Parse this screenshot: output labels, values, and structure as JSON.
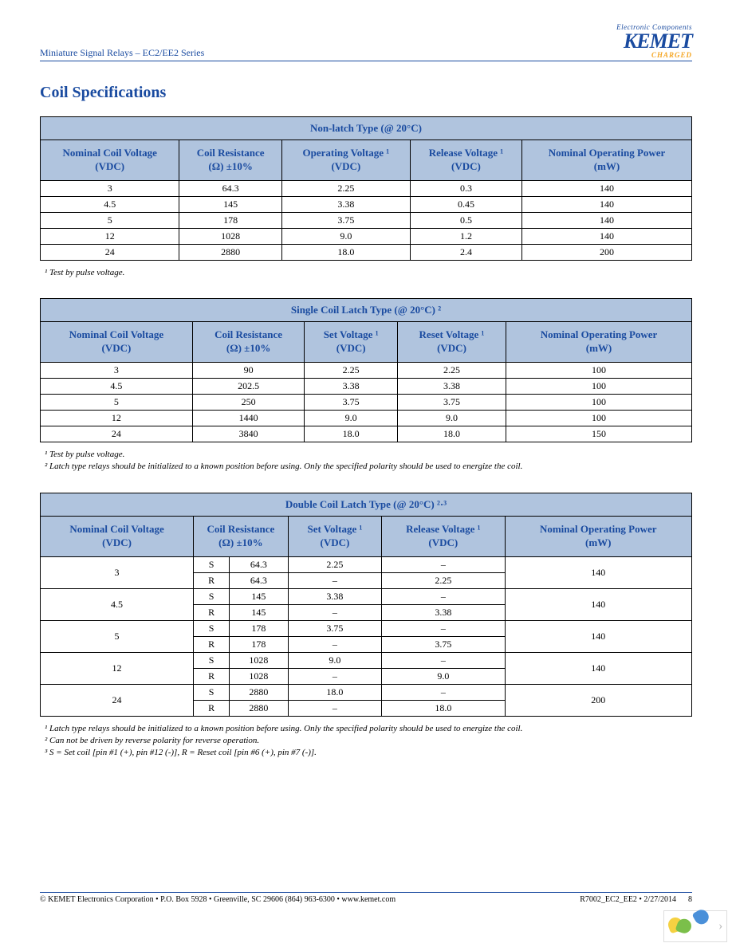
{
  "doc_title": "Miniature Signal Relays – EC2/EE2 Series",
  "brand": {
    "ec": "Electronic Components",
    "name": "KEMET",
    "tag": "CHARGED"
  },
  "section_title": "Coil Specifications",
  "colors": {
    "header_bg": "#b0c4de",
    "header_text": "#1a4ba0",
    "border": "#000000",
    "page_bg": "#ffffff",
    "accent_orange": "#f5a623"
  },
  "tables": {
    "nonlatch": {
      "title": "Non-latch Type (@ 20°C)",
      "columns": [
        "Nominal Coil Voltage (VDC)",
        "Coil Resistance (Ω) ±10%",
        "Operating Voltage ¹ (VDC)",
        "Release Voltage ¹ (VDC)",
        "Nominal Operating Power (mW)"
      ],
      "rows": [
        [
          "3",
          "64.3",
          "2.25",
          "0.3",
          "140"
        ],
        [
          "4.5",
          "145",
          "3.38",
          "0.45",
          "140"
        ],
        [
          "5",
          "178",
          "3.75",
          "0.5",
          "140"
        ],
        [
          "12",
          "1028",
          "9.0",
          "1.2",
          "140"
        ],
        [
          "24",
          "2880",
          "18.0",
          "2.4",
          "200"
        ]
      ],
      "notes": [
        "¹ Test by pulse voltage."
      ]
    },
    "single": {
      "title": "Single Coil Latch Type (@ 20°C) ²",
      "columns": [
        "Nominal Coil Voltage (VDC)",
        "Coil Resistance (Ω) ±10%",
        "Set Voltage ¹ (VDC)",
        "Reset Voltage ¹ (VDC)",
        "Nominal Operating Power (mW)"
      ],
      "rows": [
        [
          "3",
          "90",
          "2.25",
          "2.25",
          "100"
        ],
        [
          "4.5",
          "202.5",
          "3.38",
          "3.38",
          "100"
        ],
        [
          "5",
          "250",
          "3.75",
          "3.75",
          "100"
        ],
        [
          "12",
          "1440",
          "9.0",
          "9.0",
          "100"
        ],
        [
          "24",
          "3840",
          "18.0",
          "18.0",
          "150"
        ]
      ],
      "notes": [
        "¹ Test by pulse voltage.",
        "² Latch type relays should be initialized to a known position before using. Only the specified polarity should be used to energize the coil."
      ]
    },
    "double": {
      "title": "Double Coil Latch Type (@ 20°C) ²·³",
      "columns": [
        "Nominal Coil Voltage (VDC)",
        "Coil Resistance (Ω) ±10%",
        "Set Voltage ¹ (VDC)",
        "Release Voltage ¹ (VDC)",
        "Nominal Operating Power (mW)"
      ],
      "groups": [
        {
          "v": "3",
          "S": {
            "res": "64.3",
            "set": "2.25",
            "rel": "–"
          },
          "R": {
            "res": "64.3",
            "set": "–",
            "rel": "2.25"
          },
          "p": "140"
        },
        {
          "v": "4.5",
          "S": {
            "res": "145",
            "set": "3.38",
            "rel": "–"
          },
          "R": {
            "res": "145",
            "set": "–",
            "rel": "3.38"
          },
          "p": "140"
        },
        {
          "v": "5",
          "S": {
            "res": "178",
            "set": "3.75",
            "rel": "–"
          },
          "R": {
            "res": "178",
            "set": "–",
            "rel": "3.75"
          },
          "p": "140"
        },
        {
          "v": "12",
          "S": {
            "res": "1028",
            "set": "9.0",
            "rel": "–"
          },
          "R": {
            "res": "1028",
            "set": "–",
            "rel": "9.0"
          },
          "p": "140"
        },
        {
          "v": "24",
          "S": {
            "res": "2880",
            "set": "18.0",
            "rel": "–"
          },
          "R": {
            "res": "2880",
            "set": "–",
            "rel": "18.0"
          },
          "p": "200"
        }
      ],
      "notes": [
        "¹ Latch type relays should be initialized to a known position before using. Only the specified polarity should be used to energize the coil.",
        "² Can not be driven by reverse polarity for reverse operation.",
        "³ S = Set coil [pin #1 (+), pin #12 (-)], R = Reset coil [pin #6 (+), pin #7 (-)]."
      ]
    }
  },
  "footer": {
    "left": "© KEMET Electronics Corporation • P.O. Box 5928 • Greenville, SC 29606 (864) 963-6300 • www.kemet.com",
    "right": "R7002_EC2_EE2 • 2/27/2014",
    "page": "8"
  }
}
